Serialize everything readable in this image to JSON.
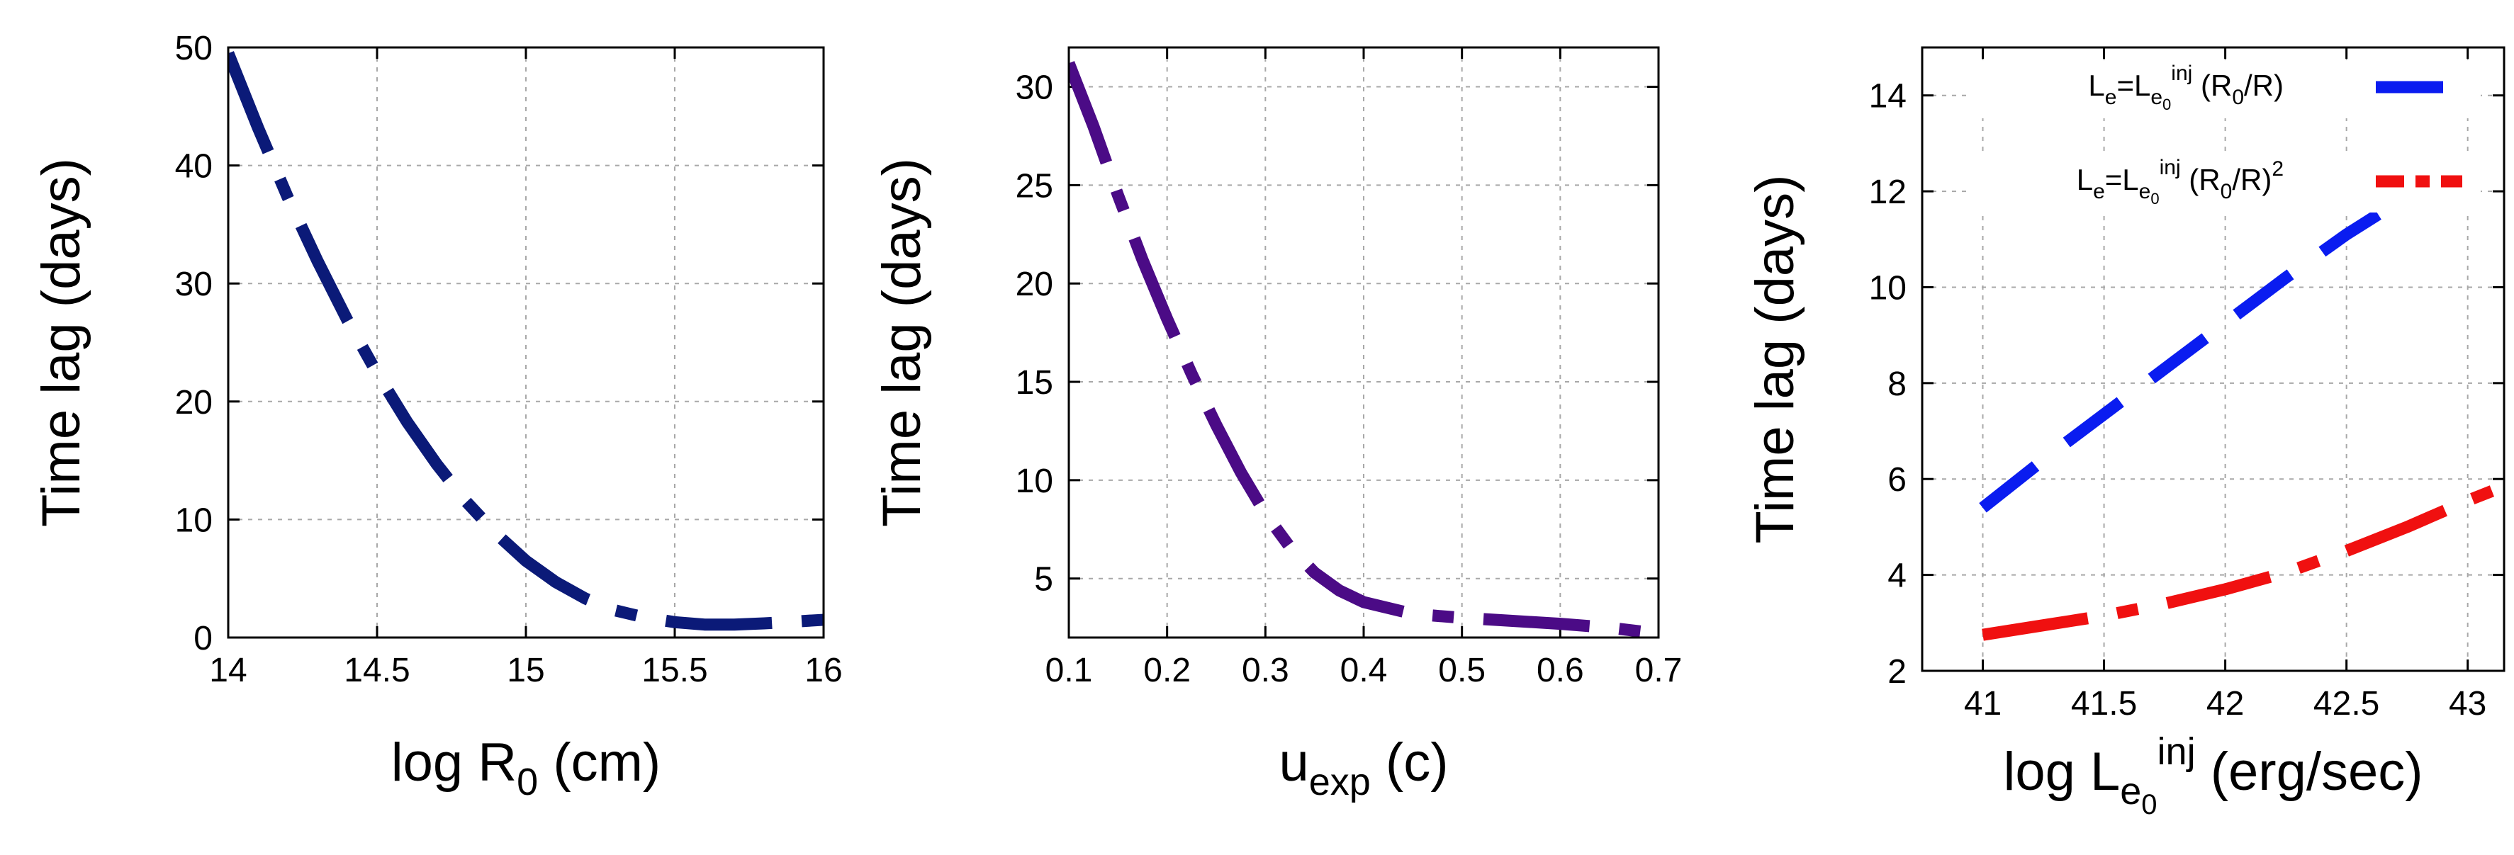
{
  "chart_data": [
    {
      "type": "line",
      "ylabel": "Time lag (days)",
      "xlabel": {
        "main": "log R",
        "sub": "0",
        "tail": " (cm)"
      },
      "xlim": [
        14,
        16
      ],
      "ylim": [
        0,
        50
      ],
      "xticks": [
        14,
        14.5,
        15,
        15.5,
        16
      ],
      "xtick_labels": [
        "14",
        "14.5",
        "15",
        "15.5",
        "16"
      ],
      "yticks": [
        0,
        10,
        20,
        30,
        40,
        50
      ],
      "ytick_labels": [
        "0",
        "10",
        "20",
        "30",
        "40",
        "50"
      ],
      "grid": true,
      "legend": "none",
      "series": [
        {
          "color": "#0b1a78",
          "dash": "dash-dot",
          "points": [
            [
              14.0,
              49.5
            ],
            [
              14.1,
              43.2
            ],
            [
              14.2,
              37.3
            ],
            [
              14.3,
              31.9
            ],
            [
              14.4,
              26.9
            ],
            [
              14.5,
              22.4
            ],
            [
              14.6,
              18.3
            ],
            [
              14.7,
              14.7
            ],
            [
              14.8,
              11.5
            ],
            [
              14.9,
              8.8
            ],
            [
              15.0,
              6.5
            ],
            [
              15.1,
              4.7
            ],
            [
              15.2,
              3.3
            ],
            [
              15.3,
              2.3
            ],
            [
              15.4,
              1.7
            ],
            [
              15.5,
              1.3
            ],
            [
              15.6,
              1.1
            ],
            [
              15.7,
              1.1
            ],
            [
              15.8,
              1.2
            ],
            [
              15.9,
              1.35
            ],
            [
              16.0,
              1.5
            ]
          ]
        }
      ]
    },
    {
      "type": "line",
      "ylabel": "Time lag (days)",
      "xlabel": {
        "main": "u",
        "sub": "exp",
        "tail": " (c)"
      },
      "xlim": [
        0.1,
        0.7
      ],
      "ylim": [
        2,
        32
      ],
      "xticks": [
        0.1,
        0.2,
        0.3,
        0.4,
        0.5,
        0.6,
        0.7
      ],
      "xtick_labels": [
        "0.1",
        "0.2",
        "0.3",
        "0.4",
        "0.5",
        "0.6",
        "0.7"
      ],
      "yticks": [
        5,
        10,
        15,
        20,
        25,
        30
      ],
      "ytick_labels": [
        "5",
        "10",
        "15",
        "20",
        "25",
        "30"
      ],
      "grid": true,
      "legend": "none",
      "series": [
        {
          "color": "#4b0b86",
          "dash": "dash-dot",
          "points": [
            [
              0.1,
              31.2
            ],
            [
              0.125,
              28.0
            ],
            [
              0.15,
              24.5
            ],
            [
              0.175,
              21.2
            ],
            [
              0.2,
              18.2
            ],
            [
              0.225,
              15.4
            ],
            [
              0.25,
              12.8
            ],
            [
              0.275,
              10.4
            ],
            [
              0.3,
              8.3
            ],
            [
              0.325,
              6.6
            ],
            [
              0.35,
              5.3
            ],
            [
              0.375,
              4.4
            ],
            [
              0.4,
              3.8
            ],
            [
              0.45,
              3.2
            ],
            [
              0.5,
              3.0
            ],
            [
              0.55,
              2.85
            ],
            [
              0.6,
              2.7
            ],
            [
              0.65,
              2.5
            ],
            [
              0.7,
              2.2
            ]
          ]
        }
      ]
    },
    {
      "type": "line",
      "ylabel": "Time lag (days)",
      "xlabel": {
        "main": "log L",
        "sub": "e",
        "subsub": "0",
        "sup": "inj",
        "tail": " (erg/sec)"
      },
      "xlim": [
        40.75,
        43.15
      ],
      "ylim": [
        2,
        15
      ],
      "xticks": [
        41,
        41.5,
        42,
        42.5,
        43
      ],
      "xtick_labels": [
        "41",
        "41.5",
        "42",
        "42.5",
        "43"
      ],
      "yticks": [
        2,
        4,
        6,
        8,
        10,
        12,
        14
      ],
      "ytick_labels": [
        "2",
        "4",
        "6",
        "8",
        "10",
        "12",
        "14"
      ],
      "grid": true,
      "legend": "top-right",
      "series": [
        {
          "legend": {
            "pre": "L",
            "pre_sub": "e",
            "eq": "=L",
            "eq_sub": "e",
            "eq_subsub": "0",
            "sup": "inj",
            "tail": " (R",
            "tail_sub": "0",
            "tail2": "/R)",
            "tail_sup": ""
          },
          "color": "#0a1cf0",
          "dash": "dash",
          "points": [
            [
              41.0,
              5.4
            ],
            [
              41.25,
              6.4
            ],
            [
              41.5,
              7.35
            ],
            [
              41.75,
              8.3
            ],
            [
              42.0,
              9.25
            ],
            [
              42.25,
              10.2
            ],
            [
              42.5,
              11.1
            ],
            [
              42.75,
              11.9
            ]
          ]
        },
        {
          "legend": {
            "pre": "L",
            "pre_sub": "e",
            "eq": "=L",
            "eq_sub": "e",
            "eq_subsub": "0",
            "sup": "inj",
            "tail": " (R",
            "tail_sub": "0",
            "tail2": "/R)",
            "tail_sup": "2"
          },
          "color": "#f01010",
          "dash": "dash-dot",
          "points": [
            [
              41.0,
              2.75
            ],
            [
              41.25,
              2.95
            ],
            [
              41.5,
              3.15
            ],
            [
              41.75,
              3.4
            ],
            [
              42.0,
              3.7
            ],
            [
              42.25,
              4.05
            ],
            [
              42.5,
              4.5
            ],
            [
              42.75,
              5.0
            ],
            [
              43.0,
              5.55
            ],
            [
              43.1,
              5.75
            ]
          ]
        }
      ]
    }
  ]
}
